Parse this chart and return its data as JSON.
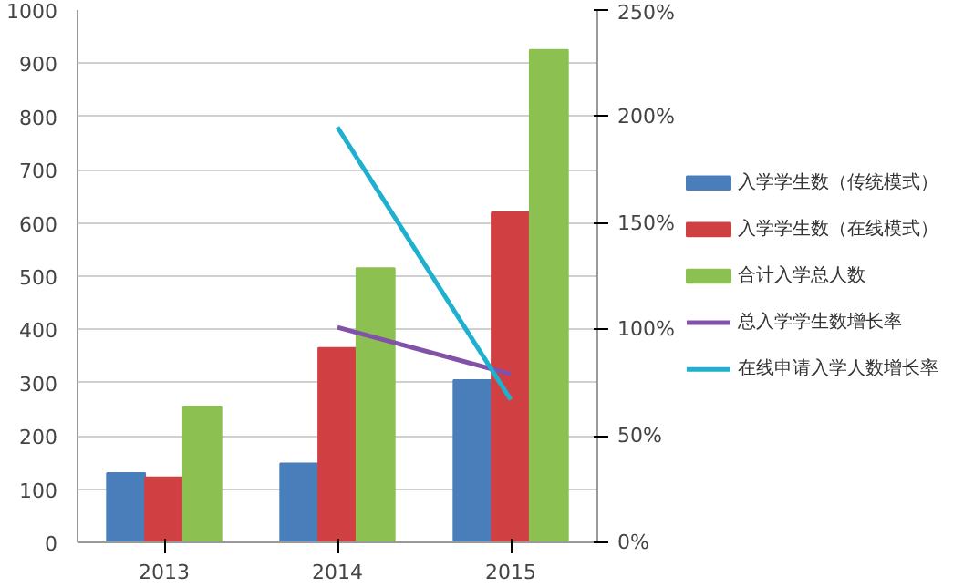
{
  "chart_data": {
    "type": "bar",
    "categories": [
      "2013",
      "2014",
      "2015"
    ],
    "series": [
      {
        "name": "入学学生数（传统模式）",
        "color": "#4a7ebb",
        "values": [
          130,
          148,
          305
        ]
      },
      {
        "name": "入学学生数（在线模式）",
        "color": "#d04043",
        "values": [
          122,
          365,
          620
        ]
      },
      {
        "name": "合计入学总人数",
        "color": "#8cc152",
        "values": [
          255,
          515,
          925
        ]
      },
      {
        "name": "总入学学生数增长率",
        "color": "#8152a8",
        "type": "line",
        "axis": "y2",
        "values": [
          null,
          101,
          79
        ]
      },
      {
        "name": "在线申请入学人数增长率",
        "color": "#1fb0d0",
        "type": "line",
        "axis": "y2",
        "values": [
          null,
          195,
          67
        ]
      }
    ],
    "ylim": [
      0,
      1000
    ],
    "yticks": [
      0,
      100,
      200,
      300,
      400,
      500,
      600,
      700,
      800,
      900,
      1000
    ],
    "y2lim": [
      0,
      250
    ],
    "y2ticks": [
      {
        "value": 0,
        "label": "0%"
      },
      {
        "value": 50,
        "label": "50%"
      },
      {
        "value": 100,
        "label": "100%"
      },
      {
        "value": 150,
        "label": "150%"
      },
      {
        "value": 200,
        "label": "200%"
      },
      {
        "value": 250,
        "label": "250%"
      }
    ],
    "grid": "y",
    "legend": "right"
  }
}
